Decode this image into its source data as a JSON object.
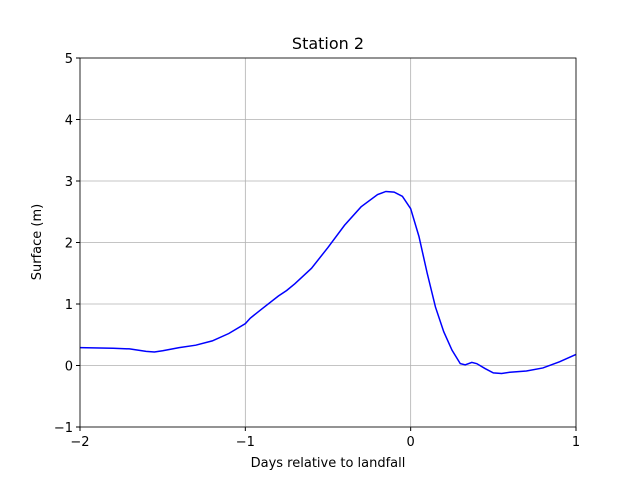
{
  "chart_data": {
    "type": "line",
    "title": "Station 2",
    "x_label": "Days relative to landfall",
    "y_label": "Surface (m)",
    "x": [
      -2,
      -1.8,
      -1.7,
      -1.6,
      -1.55,
      -1.5,
      -1.4,
      -1.3,
      -1.2,
      -1.1,
      -1.0,
      -0.97,
      -0.9,
      -0.8,
      -0.75,
      -0.7,
      -0.6,
      -0.5,
      -0.4,
      -0.3,
      -0.2,
      -0.15,
      -0.1,
      -0.05,
      0,
      0.05,
      0.1,
      0.15,
      0.2,
      0.25,
      0.3,
      0.33,
      0.37,
      0.4,
      0.45,
      0.5,
      0.55,
      0.6,
      0.7,
      0.8,
      0.9,
      1.0
    ],
    "series": [
      {
        "color": "#0000ff",
        "values": [
          0.29,
          0.28,
          0.27,
          0.23,
          0.22,
          0.24,
          0.29,
          0.33,
          0.4,
          0.52,
          0.68,
          0.77,
          0.92,
          1.13,
          1.22,
          1.33,
          1.58,
          1.92,
          2.28,
          2.58,
          2.78,
          2.83,
          2.82,
          2.75,
          2.55,
          2.1,
          1.5,
          0.95,
          0.55,
          0.25,
          0.03,
          0.01,
          0.05,
          0.03,
          -0.05,
          -0.12,
          -0.13,
          -0.11,
          -0.09,
          -0.04,
          0.06,
          0.18
        ]
      }
    ],
    "xlim": [
      -2,
      1
    ],
    "xticks": [
      {
        "value": -2,
        "label": "−2"
      },
      {
        "value": -1,
        "label": "−1"
      },
      0,
      1
    ],
    "ylim": [
      -1,
      5
    ],
    "yticks": [
      {
        "value": -1,
        "label": "−1"
      },
      0,
      1,
      2,
      3,
      4,
      5
    ],
    "grid": true
  }
}
